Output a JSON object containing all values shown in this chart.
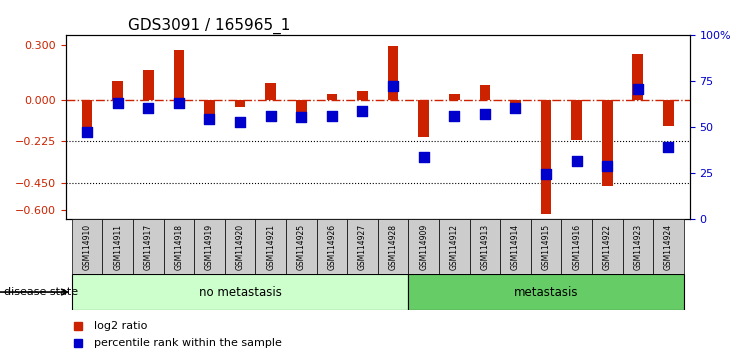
{
  "title": "GDS3091 / 165965_1",
  "samples": [
    "GSM114910",
    "GSM114911",
    "GSM114917",
    "GSM114918",
    "GSM114919",
    "GSM114920",
    "GSM114921",
    "GSM114925",
    "GSM114926",
    "GSM114927",
    "GSM114928",
    "GSM114909",
    "GSM114912",
    "GSM114913",
    "GSM114914",
    "GSM114915",
    "GSM114916",
    "GSM114922",
    "GSM114923",
    "GSM114924"
  ],
  "log2_ratio": [
    -0.18,
    0.1,
    0.16,
    0.27,
    -0.08,
    -0.04,
    0.09,
    -0.12,
    0.03,
    0.05,
    0.29,
    -0.2,
    0.03,
    0.08,
    -0.03,
    -0.62,
    -0.22,
    -0.47,
    0.25,
    -0.14
  ],
  "percentile": [
    47,
    65,
    62,
    65,
    55,
    53,
    57,
    56,
    57,
    60,
    75,
    32,
    57,
    58,
    62,
    22,
    30,
    27,
    73,
    38
  ],
  "no_metastasis_count": 11,
  "metastasis_count": 9,
  "ylim_left": [
    -0.65,
    0.35
  ],
  "ylim_right": [
    0,
    100
  ],
  "yticks_left": [
    -0.6,
    -0.45,
    -0.225,
    0,
    0.3
  ],
  "yticks_right": [
    0,
    25,
    50,
    75,
    100
  ],
  "dotted_lines": [
    -0.225,
    -0.45
  ],
  "bar_color": "#cc2200",
  "dot_color": "#0000cc",
  "no_metastasis_color": "#ccffcc",
  "metastasis_color": "#66cc66",
  "label_color_left": "#cc2200",
  "label_color_right": "#0000cc",
  "legend_bar_label": "log2 ratio",
  "legend_dot_label": "percentile rank within the sample",
  "title_fontsize": 11
}
